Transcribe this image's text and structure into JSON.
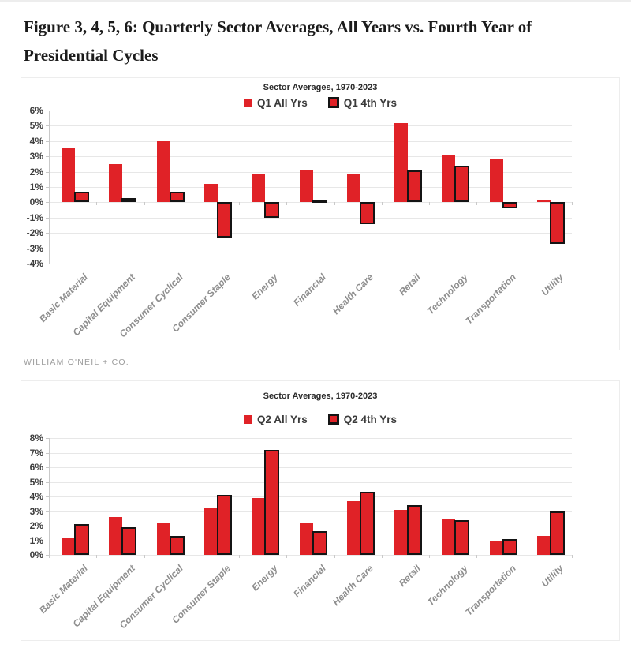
{
  "page": {
    "title": "Figure 3, 4, 5, 6: Quarterly Sector Averages, All Years vs. Fourth Year of Presidential Cycles",
    "source": "WILLIAM O'NEIL + CO."
  },
  "colors": {
    "bar_red": "#e02227",
    "bar_outline": "#141414",
    "gridline": "#e7e7e7",
    "axis_line": "#c9c9c9",
    "tick_label": "#3e3e3e",
    "category_label": "#8e8e8e"
  },
  "chart_data": [
    {
      "type": "bar",
      "title": "Sector Averages, 1970-2023",
      "categories": [
        "Basic Material",
        "Capital Equipment",
        "Consumer Cyclical",
        "Consumer Staple",
        "Energy",
        "Financial",
        "Health Care",
        "Retail",
        "Technology",
        "Transportation",
        "Utility"
      ],
      "series": [
        {
          "name": "Q1 All Yrs",
          "style": "solid",
          "values": [
            3.6,
            2.5,
            4.0,
            1.2,
            1.8,
            2.1,
            1.8,
            5.2,
            3.1,
            2.8,
            0.1
          ]
        },
        {
          "name": "Q1 4th Yrs",
          "style": "outlined",
          "values": [
            0.7,
            0.3,
            0.7,
            -2.3,
            -1.0,
            0.1,
            -1.4,
            2.1,
            2.4,
            -0.4,
            -2.7
          ]
        }
      ],
      "ylabel": "",
      "xlabel": "",
      "ylim": [
        -4,
        6
      ],
      "ytick_step": 1,
      "ytick_format": "percent",
      "grid": "horizontal",
      "legend_position": "top-center"
    },
    {
      "type": "bar",
      "title": "Sector Averages, 1970-2023",
      "categories": [
        "Basic Material",
        "Capital Equipment",
        "Consumer Cyclical",
        "Consumer Staple",
        "Energy",
        "Financial",
        "Health Care",
        "Retail",
        "Technology",
        "Transportation",
        "Utility"
      ],
      "series": [
        {
          "name": "Q2 All Yrs",
          "style": "solid",
          "values": [
            1.2,
            2.6,
            2.2,
            3.2,
            3.9,
            2.2,
            3.7,
            3.1,
            2.5,
            1.0,
            1.3
          ]
        },
        {
          "name": "Q2 4th Yrs",
          "style": "outlined",
          "values": [
            2.1,
            1.9,
            1.3,
            4.1,
            7.2,
            1.6,
            4.3,
            3.4,
            2.4,
            1.1,
            3.0
          ]
        }
      ],
      "ylabel": "",
      "xlabel": "",
      "ylim": [
        0,
        8
      ],
      "ytick_step": 1,
      "ytick_format": "percent",
      "grid": "horizontal",
      "legend_position": "top-center"
    }
  ]
}
